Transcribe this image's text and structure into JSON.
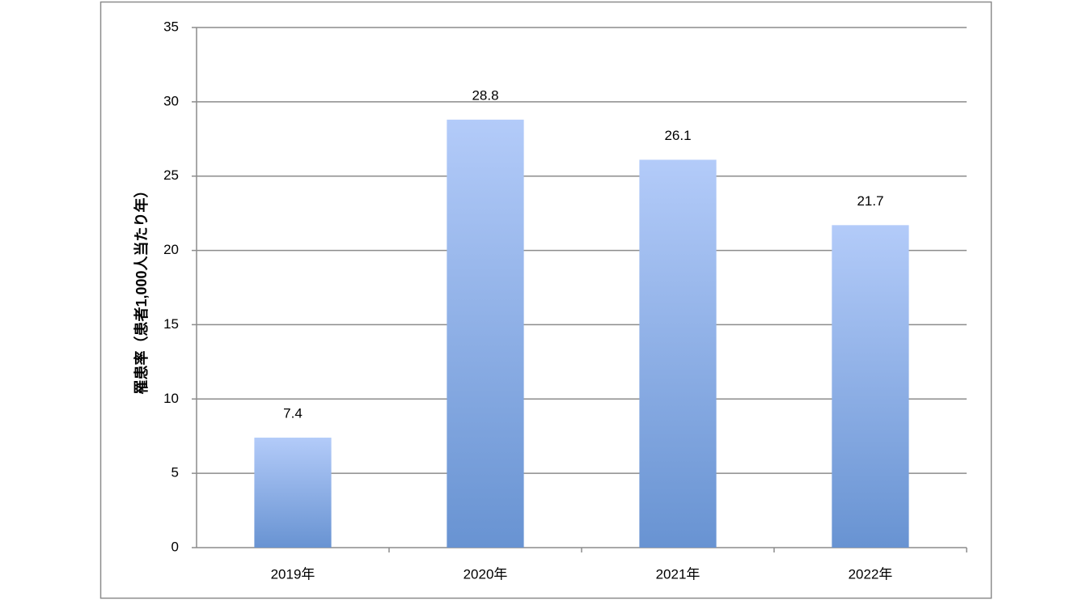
{
  "chart_data": {
    "type": "bar",
    "y_label": "罹患率（患者1,000人当たり年）",
    "categories": [
      "2019年",
      "2020年",
      "2021年",
      "2022年"
    ],
    "values": [
      7.4,
      28.8,
      26.1,
      21.7
    ],
    "ylim": [
      0,
      35
    ],
    "yticks": [
      0,
      5,
      10,
      15,
      20,
      25,
      30,
      35
    ],
    "grid": true
  }
}
